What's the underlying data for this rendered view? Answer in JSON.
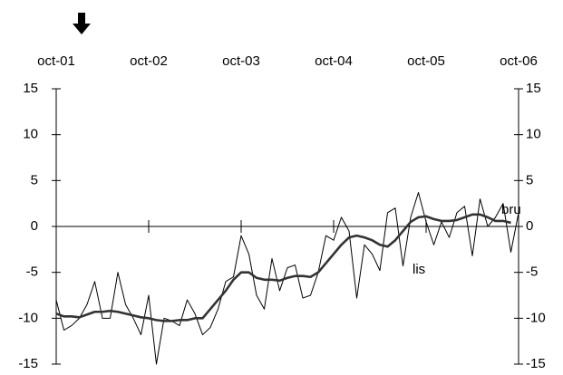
{
  "chart_data": {
    "type": "line",
    "xlim": [
      0,
      60
    ],
    "xticks": [
      {
        "value": 0,
        "label": "oct-01"
      },
      {
        "value": 12,
        "label": "oct-02"
      },
      {
        "value": 24,
        "label": "oct-03"
      },
      {
        "value": 36,
        "label": "oct-04"
      },
      {
        "value": 48,
        "label": "oct-05"
      },
      {
        "value": 60,
        "label": "oct-06"
      }
    ],
    "ylim": [
      -15,
      15
    ],
    "yticks": [
      15,
      10,
      5,
      0,
      -5,
      -10,
      -15
    ],
    "series": [
      {
        "name": "bru",
        "color": "#000000",
        "values": [
          -8,
          -11.3,
          -10.8,
          -10,
          -8.5,
          -6,
          -10,
          -10,
          -5,
          -8.5,
          -10,
          -11.8,
          -7.5,
          -15,
          -10,
          -10.3,
          -10.8,
          -8,
          -9.5,
          -11.8,
          -11,
          -9,
          -6,
          -5.5,
          -1,
          -3,
          -7.5,
          -9,
          -3.5,
          -7,
          -4.5,
          -4.2,
          -7.8,
          -7.5,
          -5,
          -1,
          -1.5,
          1,
          -0.5,
          -7.8,
          -2,
          -3,
          -4.8,
          1.5,
          2,
          -4.3,
          1,
          3.7,
          0.5,
          -2,
          0.5,
          -1.2,
          1.5,
          2.2,
          -3.2,
          3,
          0,
          1,
          2.5,
          -2.8,
          1.5
        ]
      },
      {
        "name": "lis",
        "color": "#333333",
        "values": [
          -9.5,
          -9.8,
          -9.8,
          -9.9,
          -9.6,
          -9.3,
          -9.3,
          -9.2,
          -9.3,
          -9.5,
          -9.7,
          -9.9,
          -10,
          -10.2,
          -10.3,
          -10.3,
          -10.2,
          -10.2,
          -10,
          -10,
          -9,
          -8,
          -7,
          -5.8,
          -5,
          -5,
          -5.6,
          -5.8,
          -5.8,
          -5.9,
          -5.6,
          -5.4,
          -5.4,
          -5.5,
          -5,
          -4,
          -3,
          -2,
          -1.2,
          -1,
          -1.2,
          -1.5,
          -2,
          -2.2,
          -1.5,
          -0.5,
          0.5,
          1,
          1.1,
          0.8,
          0.6,
          0.6,
          0.7,
          1,
          1.3,
          1.3,
          1,
          0.6,
          0.6,
          0.4,
          null
        ]
      }
    ]
  }
}
